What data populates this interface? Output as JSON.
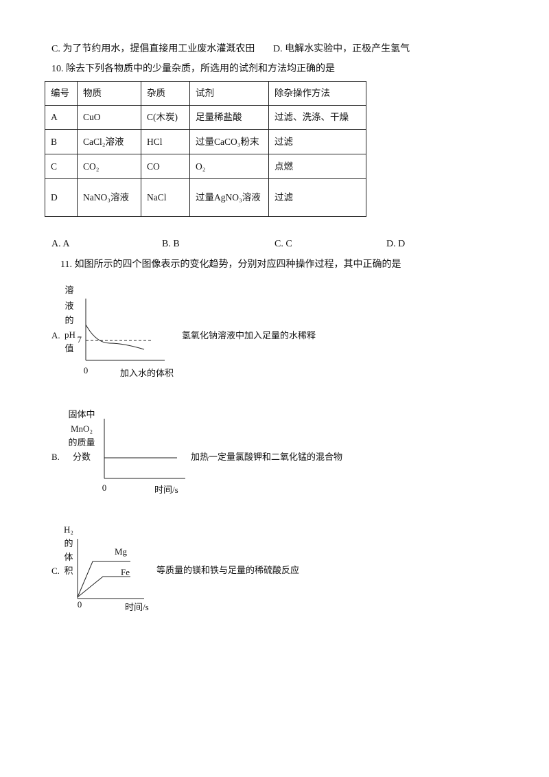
{
  "options_9": {
    "c": "C. 为了节约用水，提倡直接用工业废水灌溉农田",
    "d": "D. 电解水实验中，正极产生氢气"
  },
  "question_10": {
    "stem": "10. 除去下列各物质中的少量杂质，所选用的试剂和方法均正确的是",
    "table": {
      "header": [
        "编号",
        "物质",
        "杂质",
        "试剂",
        "除杂操作方法"
      ],
      "rows": [
        [
          "A",
          "CuO",
          "C(木炭)",
          "足量稀盐酸",
          "过滤、洗涤、干燥"
        ],
        [
          "B",
          "CaCl₂溶液",
          "HCl",
          "过量CaCO₃粉末",
          "过滤"
        ],
        [
          "C",
          "CO₂",
          "CO",
          "O₂",
          "点燃"
        ],
        [
          "D",
          "NaNO₃溶液",
          "NaCl",
          "过量AgNO₃溶液",
          "过滤"
        ]
      ]
    },
    "options": [
      "A. A",
      "B. B",
      "C. C",
      "D. D"
    ]
  },
  "question_11": {
    "stem": "11. 如图所示的四个图像表示的变化趋势，分别对应四种操作过程，其中正确的是",
    "graph_a": {
      "label": "A.",
      "y_label": [
        "溶",
        "液",
        "的",
        "pH",
        "值"
      ],
      "y_tick": "7",
      "origin": "0",
      "x_label": "加入水的体积",
      "description": "氢氧化钠溶液中加入足量的水稀释"
    },
    "graph_b": {
      "label": "B.",
      "y_label": [
        "固体中",
        "MnO₂",
        "的质量",
        "分数"
      ],
      "origin": "0",
      "x_label": "时间/s",
      "description": "加热一定量氯酸钾和二氧化锰的混合物"
    },
    "graph_c": {
      "label": "C.",
      "y_label": [
        "H₂",
        "的",
        "体",
        "积"
      ],
      "curve_labels": [
        "Mg",
        "Fe"
      ],
      "origin": "0",
      "x_label": "时间/s",
      "description": "等质量的镁和铁与足量的稀硫酸反应"
    }
  }
}
